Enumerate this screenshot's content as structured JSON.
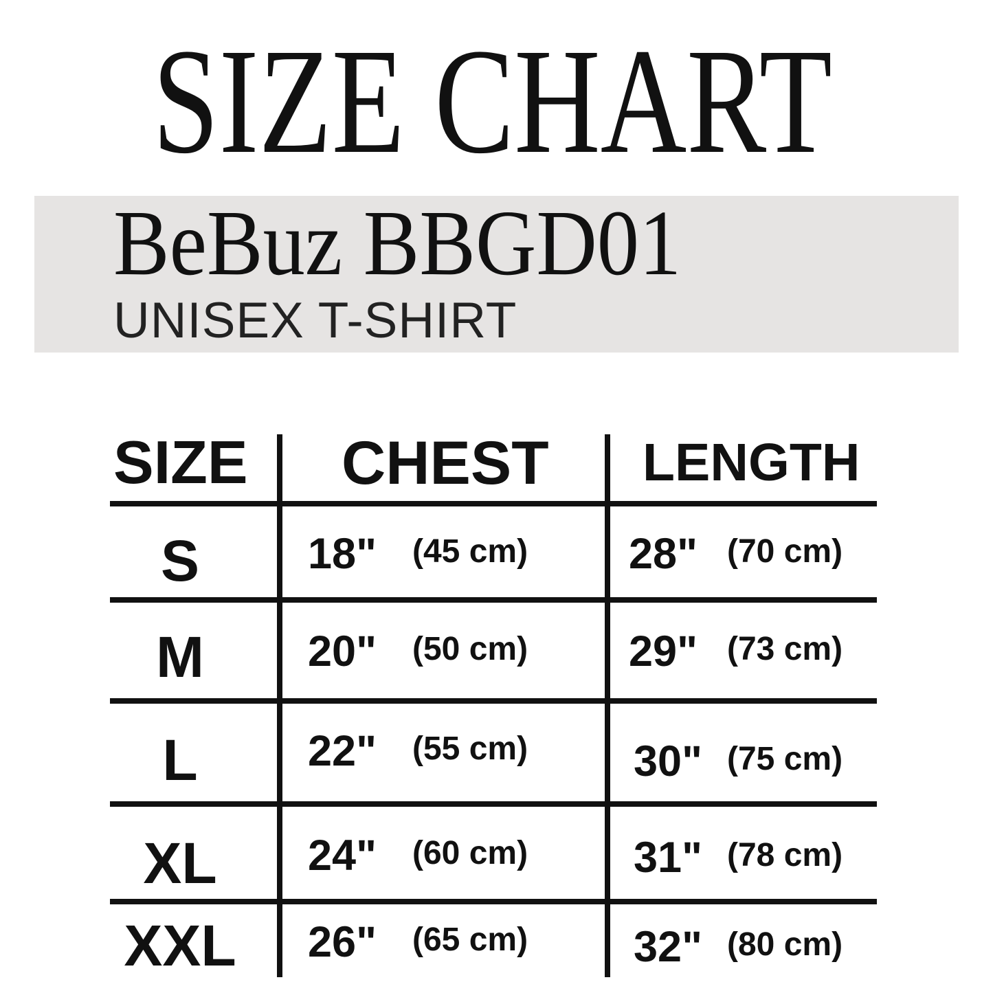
{
  "title": "SIZE CHART",
  "product": {
    "name": "BeBuz BBGD01",
    "type": "UNISEX T-SHIRT",
    "band_color": "#e6e4e3"
  },
  "table": {
    "headers": [
      "SIZE",
      "CHEST",
      "LENGTH"
    ],
    "rows": [
      {
        "size": "S",
        "chest_in": "18\"",
        "chest_cm": "(45 cm)",
        "length_in": "28\"",
        "length_cm": "(70 cm)"
      },
      {
        "size": "M",
        "chest_in": "20\"",
        "chest_cm": "(50 cm)",
        "length_in": "29\"",
        "length_cm": "(73 cm)"
      },
      {
        "size": "L",
        "chest_in": "22\"",
        "chest_cm": "(55 cm)",
        "length_in": "30\"",
        "length_cm": "(75 cm)"
      },
      {
        "size": "XL",
        "chest_in": "24\"",
        "chest_cm": "(60 cm)",
        "length_in": "31\"",
        "length_cm": "(78 cm)"
      },
      {
        "size": "XXL",
        "chest_in": "26\"",
        "chest_cm": "(65 cm)",
        "length_in": "32\"",
        "length_cm": "(80 cm)"
      }
    ]
  }
}
